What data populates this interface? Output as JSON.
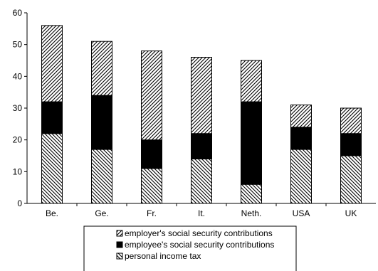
{
  "chart_data": {
    "type": "bar",
    "stacked": true,
    "categories": [
      "Be.",
      "Ge.",
      "Fr.",
      "It.",
      "Neth.",
      "USA",
      "UK"
    ],
    "series": [
      {
        "name": "personal income tax",
        "pattern": "backslash-hatch",
        "values": [
          22,
          17,
          11,
          14,
          6,
          17,
          15
        ]
      },
      {
        "name": "employee's social security contributions",
        "pattern": "solid-black",
        "values": [
          10,
          17,
          9,
          8,
          26,
          7,
          7
        ]
      },
      {
        "name": "employer's social security contributions",
        "pattern": "slash-hatch",
        "values": [
          24,
          17,
          28,
          24,
          13,
          7,
          8
        ]
      }
    ],
    "title": "",
    "xlabel": "",
    "ylabel": "",
    "ylim": [
      0,
      60
    ],
    "yticks": [
      0,
      10,
      20,
      30,
      40,
      50,
      60
    ],
    "grid": false,
    "legend": {
      "placement": "bottom",
      "order": [
        "employer's social security contributions",
        "employee's social security contributions",
        "personal income tax"
      ]
    },
    "colors": {
      "bar_outline": "#000000",
      "fill_dark": "#000000",
      "background": "#ffffff"
    }
  }
}
